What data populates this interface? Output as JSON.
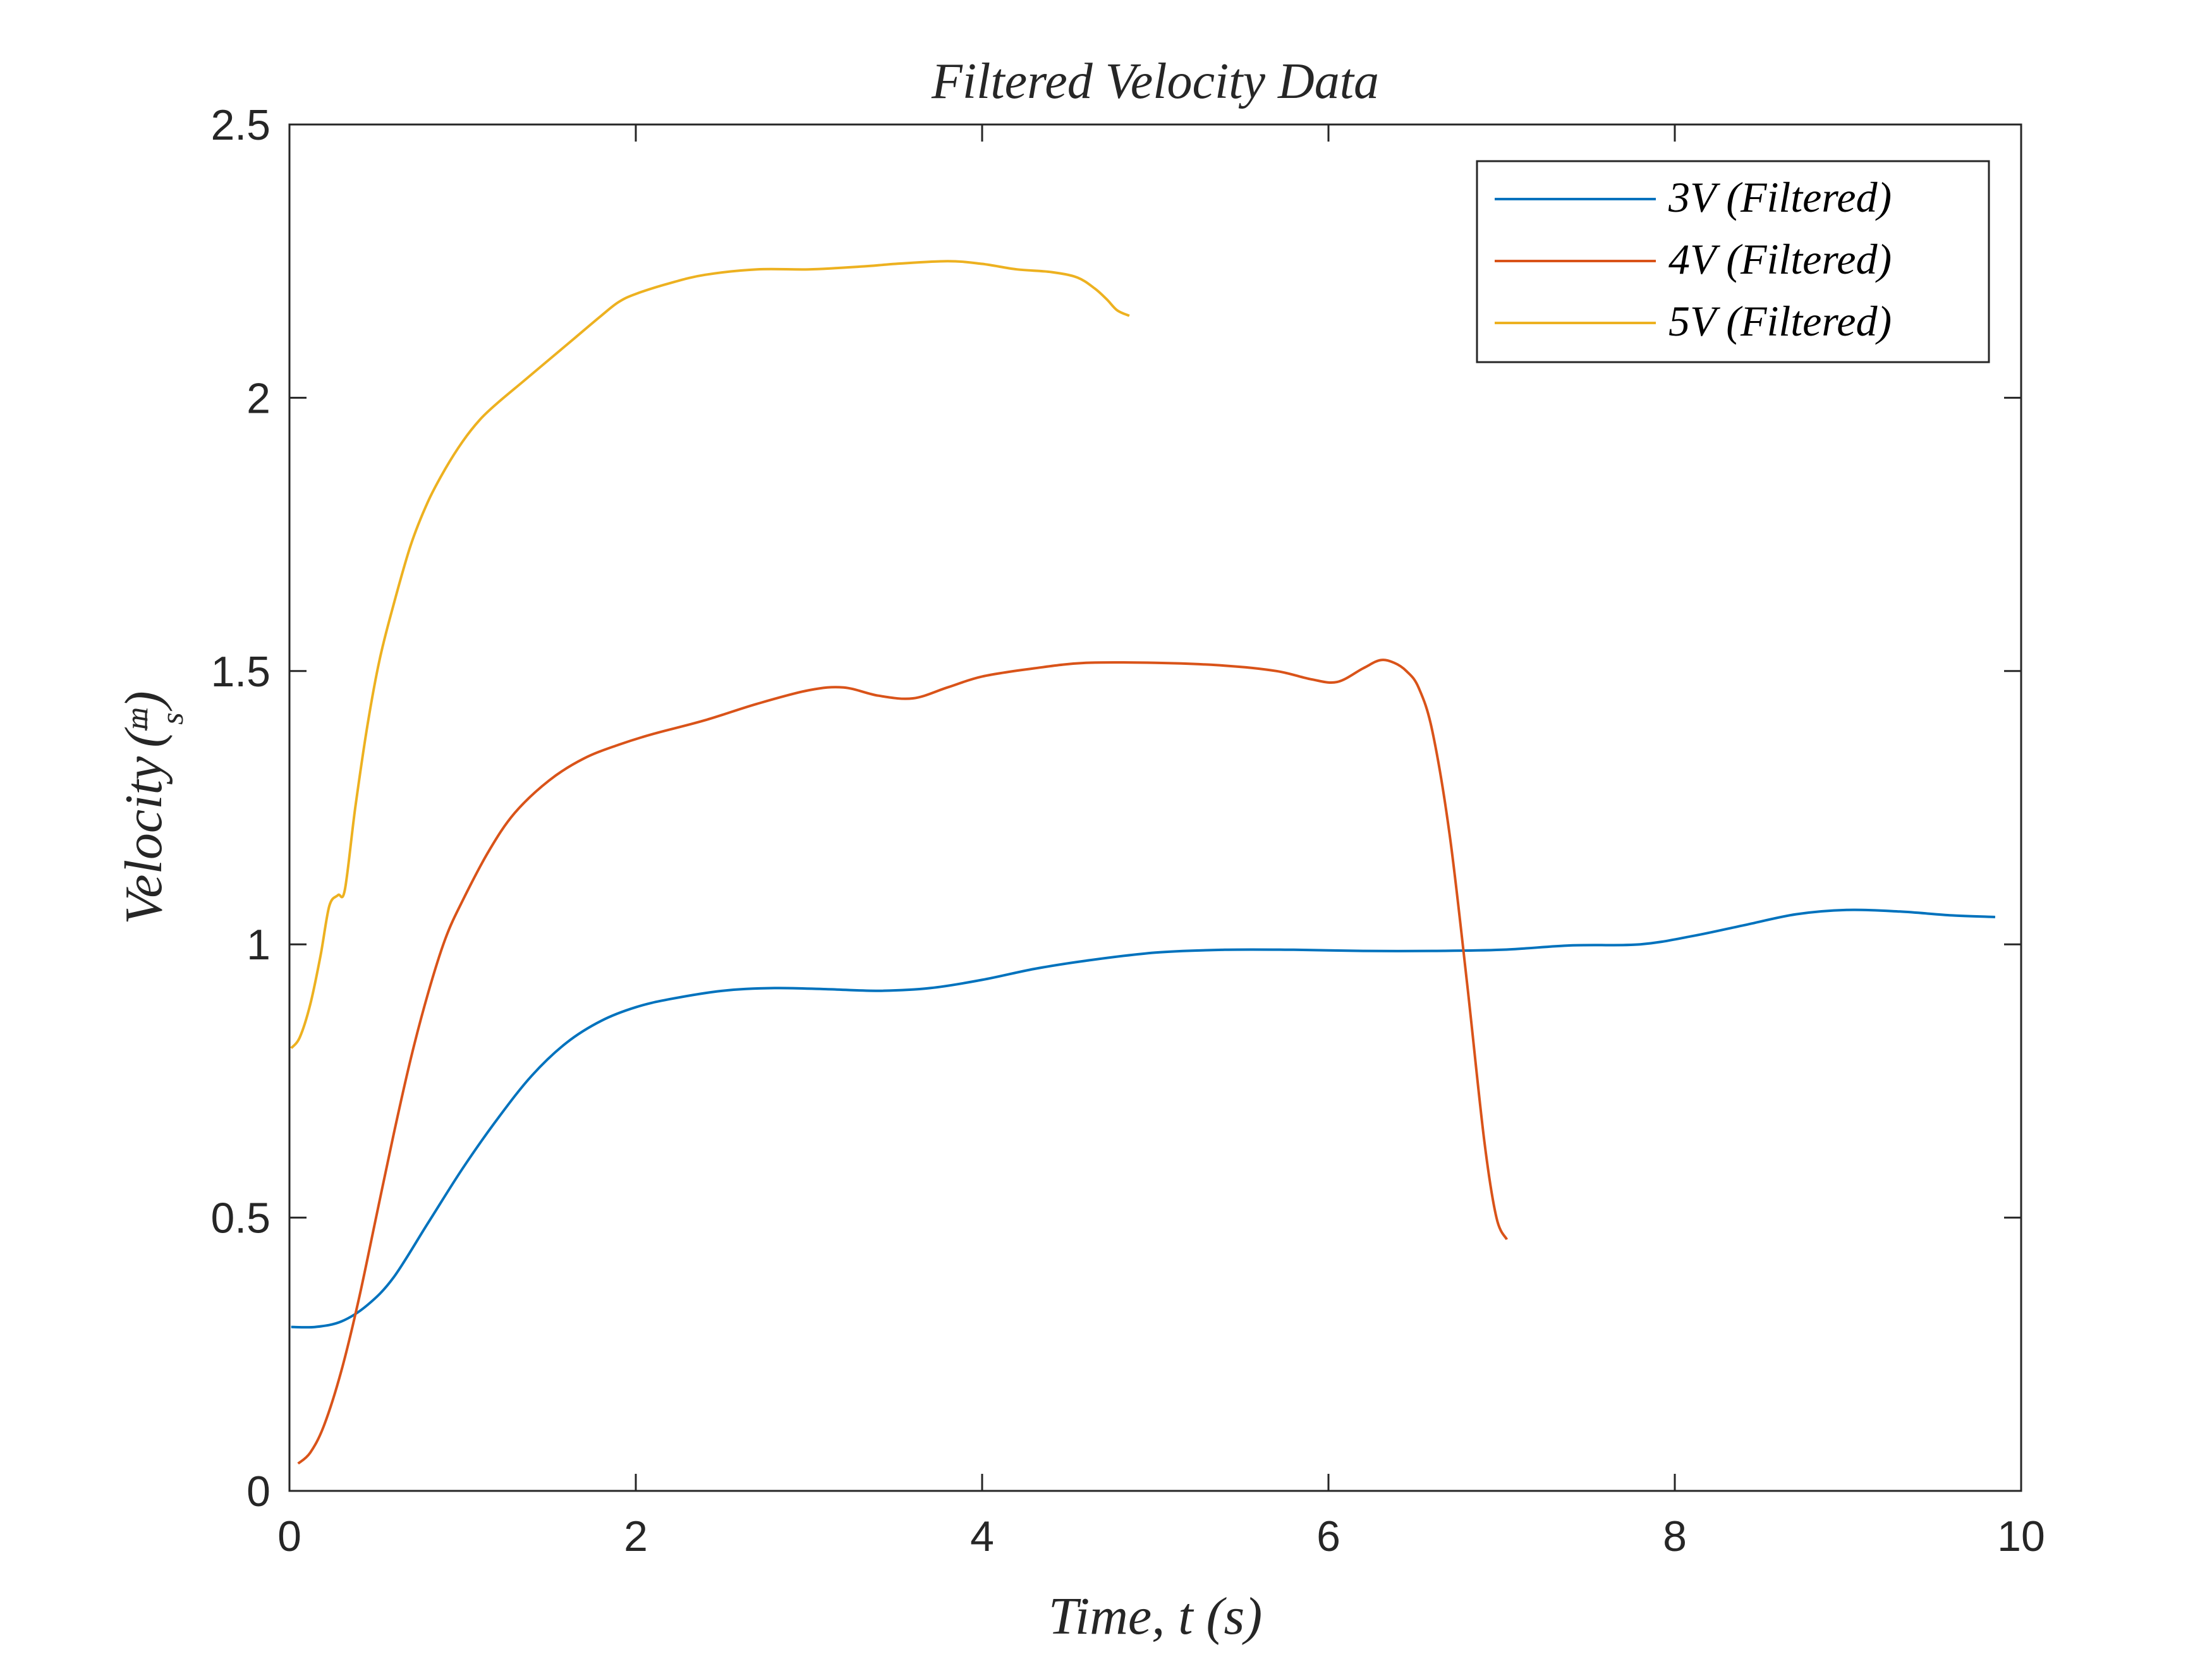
{
  "chart_data": {
    "type": "line",
    "title": "Filtered Velocity Data",
    "xlabel": "Time, t (s)",
    "ylabel": "Velocity",
    "ylabel_unit": {
      "numerator": "m",
      "denominator": "s"
    },
    "xlim": [
      0,
      10
    ],
    "ylim": [
      0,
      2.5
    ],
    "xticks": [
      0,
      2,
      4,
      6,
      8,
      10
    ],
    "yticks": [
      0,
      0.5,
      1,
      1.5,
      2,
      2.5
    ],
    "xtick_labels": [
      "0",
      "2",
      "4",
      "6",
      "8",
      "10"
    ],
    "ytick_labels": [
      "0",
      "0.5",
      "1",
      "1.5",
      "2",
      "2.5"
    ],
    "grid": false,
    "legend_position": "top-right",
    "series": [
      {
        "name": "3V (Filtered)",
        "color": "#0072BD",
        "x": [
          0.01,
          0.15,
          0.3,
          0.45,
          0.6,
          0.8,
          1.0,
          1.2,
          1.4,
          1.6,
          1.8,
          2.0,
          2.2,
          2.5,
          2.8,
          3.1,
          3.4,
          3.7,
          4.0,
          4.3,
          4.6,
          5.0,
          5.4,
          5.8,
          6.2,
          6.6,
          7.0,
          7.4,
          7.8,
          8.1,
          8.4,
          8.7,
          9.0,
          9.3,
          9.6,
          9.85
        ],
        "y": [
          0.3,
          0.3,
          0.31,
          0.34,
          0.39,
          0.49,
          0.59,
          0.68,
          0.76,
          0.82,
          0.86,
          0.885,
          0.9,
          0.915,
          0.92,
          0.918,
          0.915,
          0.92,
          0.935,
          0.955,
          0.97,
          0.985,
          0.99,
          0.99,
          0.988,
          0.988,
          0.99,
          0.998,
          1.0,
          1.015,
          1.035,
          1.055,
          1.063,
          1.06,
          1.053,
          1.05
        ]
      },
      {
        "name": "4V (Filtered)",
        "color": "#D95319",
        "x": [
          0.05,
          0.12,
          0.2,
          0.3,
          0.4,
          0.5,
          0.6,
          0.7,
          0.8,
          0.9,
          1.0,
          1.15,
          1.3,
          1.5,
          1.7,
          1.9,
          2.1,
          2.4,
          2.7,
          3.0,
          3.2,
          3.4,
          3.6,
          3.8,
          4.0,
          4.3,
          4.6,
          5.0,
          5.4,
          5.7,
          5.9,
          6.05,
          6.2,
          6.3,
          6.38,
          6.45,
          6.52,
          6.6,
          6.7,
          6.8,
          6.9,
          6.97,
          7.03
        ],
        "y": [
          0.05,
          0.07,
          0.12,
          0.22,
          0.35,
          0.5,
          0.65,
          0.79,
          0.91,
          1.01,
          1.08,
          1.17,
          1.24,
          1.3,
          1.34,
          1.365,
          1.385,
          1.41,
          1.44,
          1.465,
          1.47,
          1.455,
          1.45,
          1.47,
          1.49,
          1.505,
          1.515,
          1.515,
          1.51,
          1.5,
          1.485,
          1.48,
          1.505,
          1.52,
          1.515,
          1.5,
          1.47,
          1.39,
          1.2,
          0.93,
          0.64,
          0.5,
          0.46
        ]
      },
      {
        "name": "5V (Filtered)",
        "color": "#EDB120",
        "x": [
          0.01,
          0.06,
          0.12,
          0.18,
          0.23,
          0.28,
          0.32,
          0.38,
          0.45,
          0.52,
          0.6,
          0.7,
          0.8,
          0.9,
          1.0,
          1.1,
          1.2,
          1.35,
          1.5,
          1.65,
          1.8,
          1.9,
          2.0,
          2.2,
          2.4,
          2.7,
          3.0,
          3.3,
          3.5,
          3.8,
          4.0,
          4.2,
          4.4,
          4.55,
          4.65,
          4.72,
          4.78,
          4.85
        ],
        "y": [
          0.81,
          0.83,
          0.89,
          0.98,
          1.07,
          1.09,
          1.1,
          1.25,
          1.4,
          1.52,
          1.62,
          1.73,
          1.81,
          1.87,
          1.92,
          1.96,
          1.99,
          2.03,
          2.07,
          2.11,
          2.15,
          2.175,
          2.19,
          2.21,
          2.225,
          2.235,
          2.235,
          2.24,
          2.245,
          2.25,
          2.245,
          2.235,
          2.23,
          2.22,
          2.2,
          2.18,
          2.16,
          2.15
        ]
      }
    ]
  }
}
